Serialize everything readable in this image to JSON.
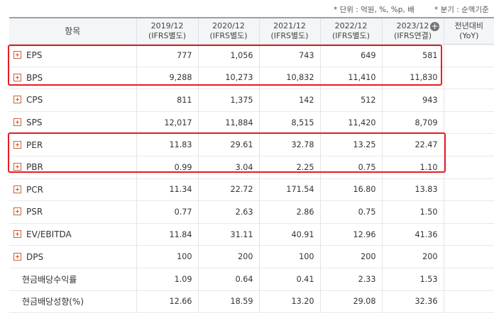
{
  "units": {
    "unit_note": "* 단위 : 억원, %, %p, 배",
    "period_note": "* 분기 : 순액기준"
  },
  "header": {
    "item": "항목",
    "periods": [
      {
        "year": "2019/12",
        "basis": "(IFRS별도)"
      },
      {
        "year": "2020/12",
        "basis": "(IFRS별도)"
      },
      {
        "year": "2021/12",
        "basis": "(IFRS별도)"
      },
      {
        "year": "2022/12",
        "basis": "(IFRS별도)"
      },
      {
        "year": "2023/12",
        "basis": "(IFRS연결)"
      }
    ],
    "yoy_line1": "전년대비",
    "yoy_line2": "(YoY)"
  },
  "rows": [
    {
      "label": "EPS",
      "expandable": true,
      "values": [
        "777",
        "1,056",
        "743",
        "649",
        "581"
      ],
      "yoy": ""
    },
    {
      "label": "BPS",
      "expandable": true,
      "values": [
        "9,288",
        "10,273",
        "10,832",
        "11,410",
        "11,830"
      ],
      "yoy": ""
    },
    {
      "label": "CPS",
      "expandable": true,
      "values": [
        "811",
        "1,375",
        "142",
        "512",
        "943"
      ],
      "yoy": ""
    },
    {
      "label": "SPS",
      "expandable": true,
      "values": [
        "12,017",
        "11,884",
        "8,515",
        "11,420",
        "8,709"
      ],
      "yoy": ""
    },
    {
      "label": "PER",
      "expandable": true,
      "values": [
        "11.83",
        "29.61",
        "32.78",
        "13.25",
        "22.47"
      ],
      "yoy": ""
    },
    {
      "label": "PBR",
      "expandable": true,
      "values": [
        "0.99",
        "3.04",
        "2.25",
        "0.75",
        "1.10"
      ],
      "yoy": ""
    },
    {
      "label": "PCR",
      "expandable": true,
      "values": [
        "11.34",
        "22.72",
        "171.54",
        "16.80",
        "13.83"
      ],
      "yoy": ""
    },
    {
      "label": "PSR",
      "expandable": true,
      "values": [
        "0.77",
        "2.63",
        "2.86",
        "0.75",
        "1.50"
      ],
      "yoy": ""
    },
    {
      "label": "EV/EBITDA",
      "expandable": true,
      "values": [
        "11.84",
        "31.11",
        "40.91",
        "12.96",
        "41.36"
      ],
      "yoy": ""
    },
    {
      "label": "DPS",
      "expandable": true,
      "values": [
        "100",
        "200",
        "100",
        "200",
        "200"
      ],
      "yoy": ""
    },
    {
      "label": "현금배당수익률",
      "expandable": false,
      "values": [
        "1.09",
        "0.64",
        "0.41",
        "2.33",
        "1.53"
      ],
      "yoy": ""
    },
    {
      "label": "현금배당성향(%)",
      "expandable": false,
      "values": [
        "12.66",
        "18.59",
        "13.20",
        "29.08",
        "32.36"
      ],
      "yoy": ""
    }
  ],
  "colors": {
    "highlight": "#e51c23",
    "expand_icon": "#d2552a"
  }
}
